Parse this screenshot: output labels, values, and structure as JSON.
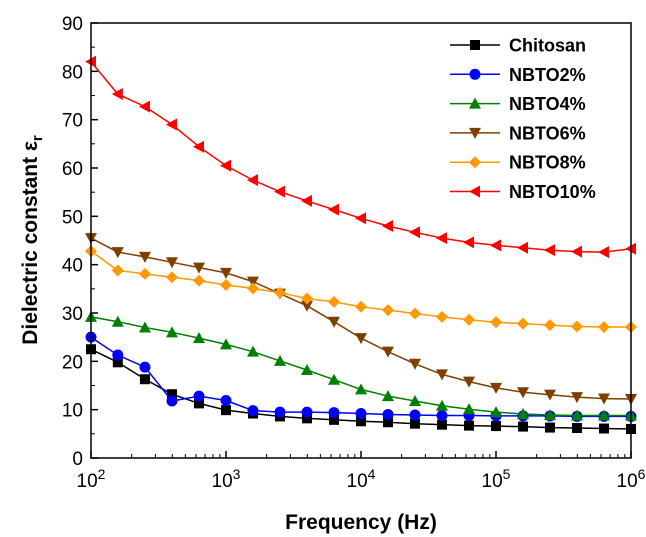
{
  "chart_data": {
    "type": "line",
    "title": "",
    "xlabel": "Frequency (Hz)",
    "ylabel_main": "Dielectric constant ε",
    "ylabel_sub": "r",
    "x_scale": "log",
    "xlim": [
      100,
      1000000
    ],
    "ylim": [
      0,
      90
    ],
    "x_ticks": [
      {
        "value": 100,
        "base": "10",
        "exp": "2"
      },
      {
        "value": 1000,
        "base": "10",
        "exp": "3"
      },
      {
        "value": 10000,
        "base": "10",
        "exp": "4"
      },
      {
        "value": 100000,
        "base": "10",
        "exp": "5"
      },
      {
        "value": 1000000,
        "base": "10",
        "exp": "6"
      }
    ],
    "y_ticks": [
      0,
      10,
      20,
      30,
      40,
      50,
      60,
      70,
      80,
      90
    ],
    "grid": false,
    "legend_position": "top-right",
    "x": [
      100,
      158,
      251,
      398,
      631,
      1000,
      1585,
      2512,
      3981,
      6310,
      10000,
      15849,
      25119,
      39811,
      63096,
      100000,
      158489,
      251189,
      398107,
      630957,
      1000000
    ],
    "series": [
      {
        "name": "Chitosan",
        "color": "#000000",
        "marker": "square",
        "values": [
          22.5,
          19.8,
          16.3,
          13.2,
          11.3,
          9.9,
          9.2,
          8.6,
          8.2,
          7.9,
          7.6,
          7.4,
          7.1,
          6.9,
          6.7,
          6.6,
          6.5,
          6.3,
          6.2,
          6.1,
          6.0
        ]
      },
      {
        "name": "NBTO2%",
        "color": "#0000FF",
        "marker": "circle",
        "values": [
          25.0,
          21.3,
          18.8,
          11.8,
          12.8,
          11.9,
          9.8,
          9.5,
          9.5,
          9.4,
          9.2,
          9.0,
          8.9,
          8.8,
          8.8,
          8.7,
          8.7,
          8.7,
          8.6,
          8.6,
          8.6
        ]
      },
      {
        "name": "NBTO4%",
        "color": "#008000",
        "marker": "triangle-up",
        "values": [
          29.2,
          28.2,
          27.0,
          26.0,
          24.8,
          23.5,
          22.0,
          20.1,
          18.2,
          16.2,
          14.2,
          12.8,
          11.8,
          10.8,
          10.1,
          9.5,
          9.1,
          8.9,
          8.8,
          8.8,
          8.8
        ]
      },
      {
        "name": "NBTO6%",
        "color": "#7F3F00",
        "marker": "triangle-down",
        "values": [
          45.5,
          42.6,
          41.6,
          40.5,
          39.4,
          38.3,
          36.5,
          34.0,
          31.5,
          28.2,
          24.8,
          22.0,
          19.5,
          17.3,
          15.8,
          14.5,
          13.6,
          13.1,
          12.6,
          12.3,
          12.2
        ]
      },
      {
        "name": "NBTO8%",
        "color": "#FF9900",
        "marker": "diamond",
        "values": [
          42.8,
          38.8,
          38.1,
          37.4,
          36.7,
          35.8,
          35.1,
          34.2,
          33.0,
          32.3,
          31.3,
          30.6,
          29.9,
          29.2,
          28.6,
          28.1,
          27.8,
          27.5,
          27.2,
          27.1,
          27.1
        ]
      },
      {
        "name": "NBTO10%",
        "color": "#FF0000",
        "marker": "triangle-left",
        "values": [
          82.0,
          75.3,
          72.7,
          69.0,
          64.4,
          60.5,
          57.5,
          55.1,
          53.2,
          51.4,
          49.6,
          48.0,
          46.7,
          45.5,
          44.6,
          44.0,
          43.5,
          43.0,
          42.7,
          42.6,
          43.3
        ]
      }
    ]
  }
}
